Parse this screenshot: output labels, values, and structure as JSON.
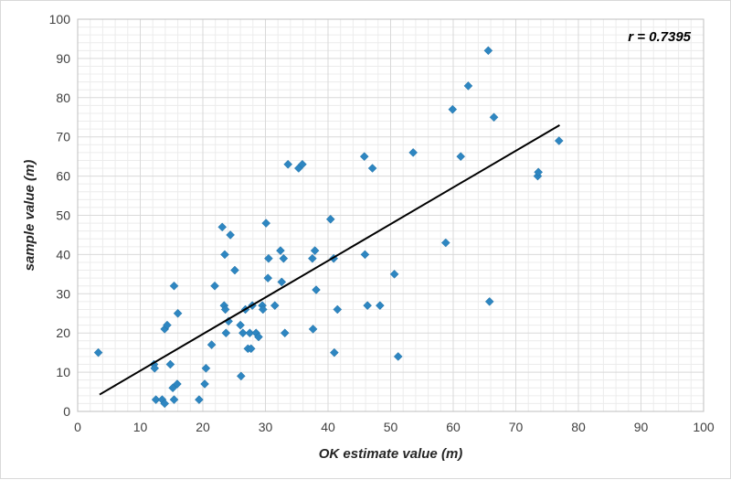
{
  "chart_data": {
    "type": "scatter",
    "xlabel": "OK estimate value (m)",
    "ylabel": "sample value (m)",
    "xlim": [
      0,
      100
    ],
    "ylim": [
      0,
      100
    ],
    "x_ticks": [
      "0",
      "10",
      "20",
      "30",
      "40",
      "50",
      "60",
      "70",
      "80",
      "90",
      "100"
    ],
    "y_ticks": [
      "0",
      "10",
      "20",
      "30",
      "40",
      "50",
      "60",
      "70",
      "80",
      "90",
      "100"
    ],
    "grid": true,
    "annotation": "r = 0.7395",
    "marker_color": "#2e86c1",
    "trend_color": "#000000",
    "grid_color": "#d9d9d9",
    "trendline": {
      "x": [
        3.5,
        77
      ],
      "y": [
        4.3,
        73
      ]
    },
    "points": [
      {
        "x": 3.3,
        "y": 15
      },
      {
        "x": 12.2,
        "y": 12
      },
      {
        "x": 12.3,
        "y": 11
      },
      {
        "x": 12.5,
        "y": 3
      },
      {
        "x": 13.5,
        "y": 3
      },
      {
        "x": 13.9,
        "y": 2
      },
      {
        "x": 13.9,
        "y": 21
      },
      {
        "x": 14.3,
        "y": 22
      },
      {
        "x": 14.8,
        "y": 12
      },
      {
        "x": 15.2,
        "y": 6
      },
      {
        "x": 15.4,
        "y": 3
      },
      {
        "x": 15.4,
        "y": 32
      },
      {
        "x": 15.9,
        "y": 7
      },
      {
        "x": 16.0,
        "y": 25
      },
      {
        "x": 19.4,
        "y": 3
      },
      {
        "x": 20.3,
        "y": 7
      },
      {
        "x": 20.5,
        "y": 11
      },
      {
        "x": 21.4,
        "y": 17
      },
      {
        "x": 21.9,
        "y": 32
      },
      {
        "x": 23.1,
        "y": 47
      },
      {
        "x": 23.4,
        "y": 27
      },
      {
        "x": 23.5,
        "y": 40
      },
      {
        "x": 23.6,
        "y": 26
      },
      {
        "x": 23.7,
        "y": 20
      },
      {
        "x": 24.1,
        "y": 23
      },
      {
        "x": 24.4,
        "y": 45
      },
      {
        "x": 25.1,
        "y": 36
      },
      {
        "x": 26.0,
        "y": 22
      },
      {
        "x": 26.1,
        "y": 9
      },
      {
        "x": 26.4,
        "y": 20
      },
      {
        "x": 26.8,
        "y": 26
      },
      {
        "x": 27.2,
        "y": 16
      },
      {
        "x": 27.5,
        "y": 20
      },
      {
        "x": 27.7,
        "y": 16
      },
      {
        "x": 27.9,
        "y": 27
      },
      {
        "x": 28.5,
        "y": 20
      },
      {
        "x": 28.9,
        "y": 19
      },
      {
        "x": 29.5,
        "y": 27
      },
      {
        "x": 29.6,
        "y": 26
      },
      {
        "x": 30.1,
        "y": 48
      },
      {
        "x": 30.4,
        "y": 34
      },
      {
        "x": 30.5,
        "y": 39
      },
      {
        "x": 31.5,
        "y": 27
      },
      {
        "x": 32.4,
        "y": 41
      },
      {
        "x": 32.6,
        "y": 33
      },
      {
        "x": 32.9,
        "y": 39
      },
      {
        "x": 33.1,
        "y": 20
      },
      {
        "x": 33.6,
        "y": 63
      },
      {
        "x": 35.3,
        "y": 62
      },
      {
        "x": 35.9,
        "y": 63
      },
      {
        "x": 37.5,
        "y": 39
      },
      {
        "x": 37.6,
        "y": 21
      },
      {
        "x": 37.9,
        "y": 41
      },
      {
        "x": 38.1,
        "y": 31
      },
      {
        "x": 40.4,
        "y": 49
      },
      {
        "x": 40.9,
        "y": 39
      },
      {
        "x": 41.0,
        "y": 15
      },
      {
        "x": 41.5,
        "y": 26
      },
      {
        "x": 45.8,
        "y": 65
      },
      {
        "x": 45.9,
        "y": 40
      },
      {
        "x": 46.3,
        "y": 27
      },
      {
        "x": 47.1,
        "y": 62
      },
      {
        "x": 48.3,
        "y": 27
      },
      {
        "x": 50.6,
        "y": 35
      },
      {
        "x": 51.2,
        "y": 14
      },
      {
        "x": 53.6,
        "y": 66
      },
      {
        "x": 58.8,
        "y": 43
      },
      {
        "x": 59.9,
        "y": 77
      },
      {
        "x": 61.2,
        "y": 65
      },
      {
        "x": 62.4,
        "y": 83
      },
      {
        "x": 65.6,
        "y": 92
      },
      {
        "x": 65.8,
        "y": 28
      },
      {
        "x": 66.5,
        "y": 75
      },
      {
        "x": 73.5,
        "y": 60
      },
      {
        "x": 73.6,
        "y": 61
      },
      {
        "x": 76.9,
        "y": 69
      }
    ]
  }
}
